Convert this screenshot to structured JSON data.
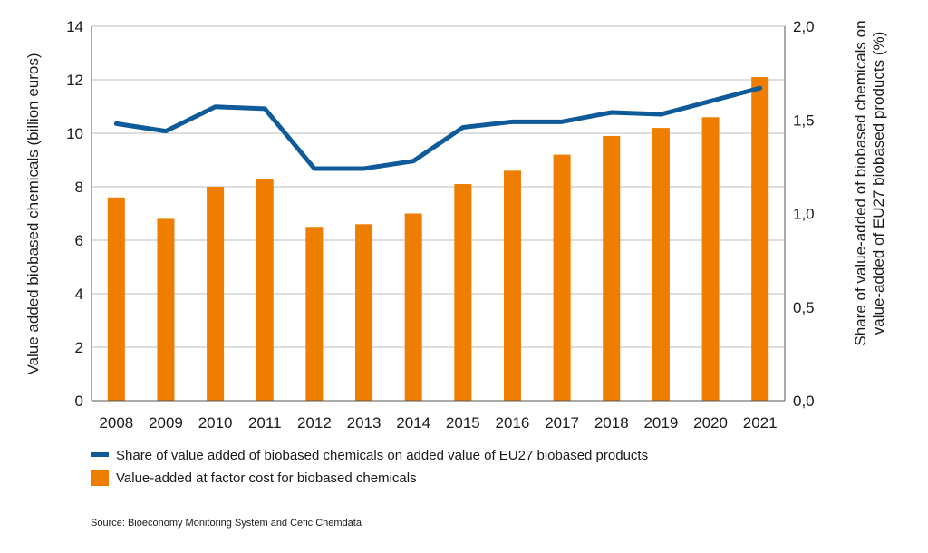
{
  "chart_data": {
    "type": "bar+line",
    "categories": [
      "2008",
      "2009",
      "2010",
      "2011",
      "2012",
      "2013",
      "2014",
      "2015",
      "2016",
      "2017",
      "2018",
      "2019",
      "2020",
      "2021"
    ],
    "series": [
      {
        "name": "Value-added at factor cost for biobased chemicals",
        "type": "bar",
        "axis": "left",
        "color": "#ee7d00",
        "values": [
          7.6,
          6.8,
          8.0,
          8.3,
          6.5,
          6.6,
          7.0,
          8.1,
          8.6,
          9.2,
          9.9,
          10.2,
          10.6,
          12.1
        ]
      },
      {
        "name": "Share of value added of biobased chemicals on added value of EU27 biobased products",
        "type": "line",
        "axis": "right",
        "color": "#0f5a99",
        "values": [
          1.48,
          1.44,
          1.57,
          1.56,
          1.24,
          1.24,
          1.28,
          1.46,
          1.49,
          1.49,
          1.54,
          1.53,
          1.6,
          1.67
        ]
      }
    ],
    "y_left": {
      "label": "Value added biobased chemicals (billion euros)",
      "ylim": [
        0,
        14
      ],
      "ticks": [
        0,
        2,
        4,
        6,
        8,
        10,
        12,
        14
      ],
      "tick_labels": [
        "0",
        "2",
        "4",
        "6",
        "8",
        "10",
        "12",
        "14"
      ]
    },
    "y_right": {
      "label_line1": "Share of value-added of biobased chemicals on",
      "label_line2": "value-added of EU27 biobased products (%)",
      "ylim": [
        0,
        2.0
      ],
      "ticks": [
        0,
        0.5,
        1.0,
        1.5,
        2.0
      ],
      "tick_labels": [
        "0,0",
        "0,5",
        "1,0",
        "1,5",
        "2,0"
      ]
    },
    "grid": "horizontal",
    "legend_position": "bottom-left",
    "legend": [
      {
        "label": "Share of value added of biobased chemicals on added value of EU27 biobased products",
        "kind": "line",
        "color": "#0f5a99"
      },
      {
        "label": "Value-added at factor cost for biobased chemicals",
        "kind": "bar",
        "color": "#ee7d00"
      }
    ],
    "source": "Source: Bioeconomy Monitoring System and Cefic Chemdata"
  }
}
